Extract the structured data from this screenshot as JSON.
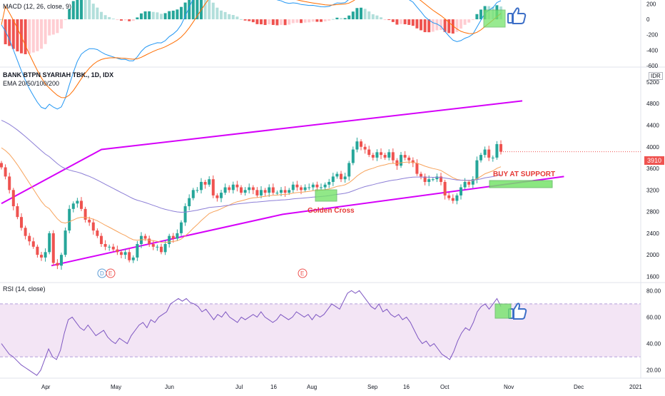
{
  "macd_label": "MACD (12, 26, close, 9)",
  "symbol_title": "BANK BTPN SYARIAH TBK., 1D, IDX",
  "ema_label": "EMA 20/50/100/200",
  "rsi_label": "RSI (14, close)",
  "currency": "IDR",
  "last_price": "3910",
  "annotations": {
    "buy_at_support": "BUY AT SUPPORT",
    "golden_cross": "Golden Cross",
    "marker_d": "D",
    "marker_e": "E"
  },
  "colors": {
    "up": "#26a69a",
    "down": "#ef5350",
    "channel": "#d500f9",
    "ema_orange": "#f7a35c",
    "ema_purple": "#8c7ed6",
    "rsi_line": "#7e57c2",
    "rsi_band": "#f3e5f5",
    "highlight_fill": "#76e36b",
    "annotation_red": "#e53935",
    "thumb_blue": "#3d6fc7"
  },
  "chart_data": [
    {
      "type": "candlestick",
      "title": "BANK BTPN SYARIAH TBK., 1D, IDX",
      "x_ticks": [
        "Apr",
        "May",
        "Jun",
        "Jul",
        "16",
        "Aug",
        "Sep",
        "16",
        "Oct",
        "Nov",
        "Dec",
        "2021"
      ],
      "y_ticks": [
        1600,
        2000,
        2400,
        2800,
        3200,
        3600,
        4000,
        4400,
        4800,
        5200
      ],
      "ylim": [
        1500,
        5450
      ],
      "last_price": 3910,
      "closes": [
        3620,
        3450,
        3200,
        2900,
        2700,
        2500,
        2350,
        2250,
        2150,
        2000,
        1950,
        2050,
        2400,
        1850,
        1800,
        2000,
        2450,
        2850,
        2950,
        3000,
        2850,
        2650,
        2600,
        2450,
        2350,
        2200,
        2150,
        2150,
        2100,
        2050,
        2000,
        2050,
        1900,
        1950,
        2200,
        2350,
        2300,
        2200,
        2150,
        2150,
        2050,
        2200,
        2350,
        2300,
        2400,
        2600,
        2900,
        3050,
        3200,
        3200,
        3350,
        3300,
        3400,
        3100,
        3050,
        3150,
        3250,
        3200,
        3300,
        3250,
        3150,
        3200,
        3250,
        3200,
        3100,
        3200,
        3150,
        3250,
        3150,
        3150,
        3200,
        3150,
        3200,
        3300,
        3250,
        3200,
        3250,
        3250,
        3300,
        3250,
        3250,
        3300,
        3350,
        3450,
        3500,
        3400,
        3450,
        3700,
        3950,
        4100,
        4000,
        3950,
        3850,
        3800,
        3900,
        3850,
        3800,
        3900,
        3750,
        3650,
        3850,
        3800,
        3750,
        3700,
        3500,
        3450,
        3350,
        3400,
        3400,
        3450,
        3350,
        3100,
        3050,
        3000,
        3100,
        3250,
        3350,
        3300,
        3400,
        3750,
        3850,
        3950,
        3800,
        3800,
        4050,
        3910
      ],
      "ema_20_50_series": "orange curve below price, crossing above purple EMA near August (Golden Cross)",
      "channel_upper": [
        [
          0,
          2950
        ],
        [
          48,
          3950
        ],
        [
          250,
          4850
        ]
      ],
      "channel_lower": [
        [
          24,
          1800
        ],
        [
          135,
          2750
        ],
        [
          270,
          3450
        ]
      ]
    },
    {
      "type": "line",
      "title": "MACD (12, 26, close, 9)",
      "y_ticks": [
        -600,
        -400,
        -200,
        0,
        200
      ],
      "ylim": [
        -600,
        250
      ]
    },
    {
      "type": "line",
      "title": "RSI (14, close)",
      "y_ticks": [
        20,
        40,
        60,
        80
      ],
      "ylim": [
        15,
        85
      ],
      "band": [
        30,
        70
      ],
      "values": [
        40,
        36,
        32,
        30,
        27,
        24,
        22,
        20,
        18,
        16,
        20,
        28,
        36,
        30,
        28,
        35,
        48,
        58,
        60,
        56,
        52,
        50,
        54,
        50,
        46,
        48,
        50,
        45,
        42,
        40,
        44,
        42,
        40,
        46,
        50,
        54,
        56,
        52,
        58,
        56,
        60,
        62,
        64,
        70,
        72,
        74,
        72,
        74,
        71,
        70,
        68,
        64,
        66,
        62,
        58,
        62,
        60,
        64,
        60,
        58,
        56,
        60,
        58,
        60,
        62,
        60,
        64,
        60,
        58,
        56,
        58,
        62,
        60,
        58,
        60,
        64,
        62,
        60,
        62,
        58,
        62,
        60,
        62,
        66,
        70,
        68,
        66,
        72,
        78,
        80,
        78,
        80,
        76,
        72,
        68,
        66,
        70,
        64,
        66,
        62,
        60,
        62,
        58,
        60,
        56,
        50,
        44,
        40,
        42,
        38,
        40,
        36,
        32,
        30,
        28,
        34,
        42,
        48,
        52,
        50,
        56,
        64,
        68,
        70,
        66,
        70,
        74,
        68
      ]
    }
  ]
}
